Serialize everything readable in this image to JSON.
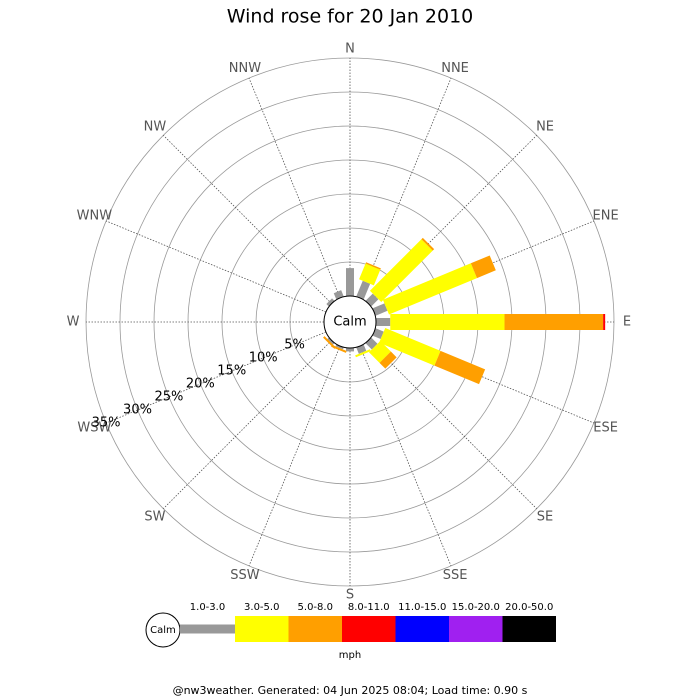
{
  "chart_data": {
    "type": "windrose",
    "title": "Wind rose for 20 Jan 2010",
    "categories": [
      "N",
      "NNE",
      "NE",
      "ENE",
      "E",
      "ESE",
      "SE",
      "SSE",
      "S",
      "SSW",
      "SW",
      "WSW",
      "W",
      "WNW",
      "NW",
      "NNW"
    ],
    "calm_label": "Calm",
    "units": "mph",
    "rlim": [
      0,
      35
    ],
    "rticks": [
      {
        "value": 5,
        "label": "5%"
      },
      {
        "value": 10,
        "label": "10%"
      },
      {
        "value": 15,
        "label": "15%"
      },
      {
        "value": 20,
        "label": "20%"
      },
      {
        "value": 25,
        "label": "25%"
      },
      {
        "value": 30,
        "label": "30%"
      },
      {
        "value": 35,
        "label": "35%"
      }
    ],
    "series": [
      {
        "name": "1.0-3.0",
        "color": "#999999",
        "values": [
          4.1,
          2.5,
          1.5,
          1.9,
          2.1,
          1.3,
          1.3,
          1.0,
          0.5,
          0.3,
          0.3,
          0,
          0,
          0,
          0.5,
          1.0
        ]
      },
      {
        "name": "3.0-5.0",
        "color": "#ffff00",
        "values": [
          0,
          2.5,
          10.7,
          14,
          16.8,
          8.8,
          2.2,
          0.3,
          0,
          0,
          0,
          0,
          0,
          0,
          0,
          0
        ]
      },
      {
        "name": "5.0-8.0",
        "color": "#ff9f00",
        "values": [
          0,
          0.2,
          0.3,
          3,
          14.5,
          7.1,
          1.2,
          0,
          0,
          0.3,
          0.3,
          0,
          0,
          0,
          0,
          0
        ]
      },
      {
        "name": "8.0-11.0",
        "color": "#ff0000",
        "values": [
          0,
          0,
          0,
          0,
          0.3,
          0,
          0,
          0,
          0,
          0,
          0,
          0,
          0,
          0,
          0,
          0
        ]
      },
      {
        "name": "11.0-15.0",
        "color": "#0000ff",
        "values": [
          0,
          0,
          0,
          0,
          0,
          0,
          0,
          0,
          0,
          0,
          0,
          0,
          0,
          0,
          0,
          0
        ]
      },
      {
        "name": "15.0-20.0",
        "color": "#a020f0",
        "values": [
          0,
          0,
          0,
          0,
          0,
          0,
          0,
          0,
          0,
          0,
          0,
          0,
          0,
          0,
          0,
          0
        ]
      },
      {
        "name": "20.0-50.0",
        "color": "#000000",
        "values": [
          0,
          0,
          0,
          0,
          0,
          0,
          0,
          0,
          0,
          0,
          0,
          0,
          0,
          0,
          0,
          0
        ]
      }
    ],
    "footer": "@nw3weather. Generated: 04 Jun 2025 08:04; Load time: 0.90 s"
  }
}
